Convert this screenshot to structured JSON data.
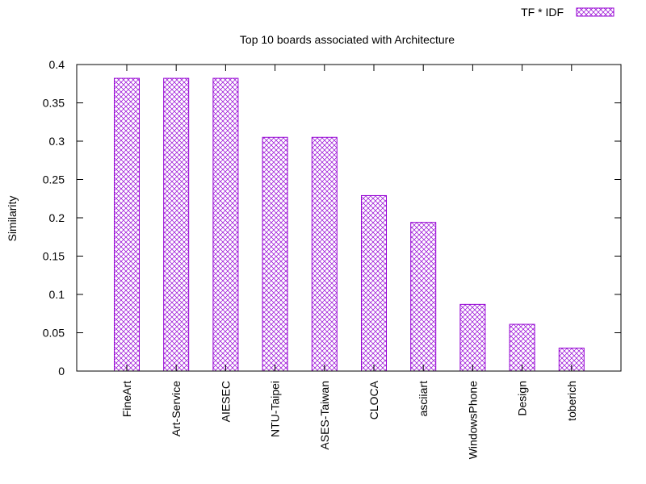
{
  "chart_data": {
    "type": "bar",
    "title": "Top 10 boards associated with Architecture",
    "xlabel": "",
    "ylabel": "Similarity",
    "ylim": [
      0,
      0.4
    ],
    "yticks": [
      "0",
      "0.05",
      "0.1",
      "0.15",
      "0.2",
      "0.25",
      "0.3",
      "0.35",
      "0.4"
    ],
    "ytick_values": [
      0,
      0.05,
      0.1,
      0.15,
      0.2,
      0.25,
      0.3,
      0.35,
      0.4
    ],
    "categories": [
      "FineArt",
      "Art-Service",
      "AIESEC",
      "NTU-Taipei",
      "ASES-Taiwan",
      "CLOCA",
      "asciiart",
      "WindowsPhone",
      "Design",
      "toberich"
    ],
    "series": [
      {
        "name": "TF * IDF",
        "color": "#9400d3",
        "values": [
          0.382,
          0.382,
          0.382,
          0.305,
          0.305,
          0.229,
          0.194,
          0.087,
          0.061,
          0.03
        ]
      }
    ],
    "legend_position": "top-right",
    "grid": false
  }
}
